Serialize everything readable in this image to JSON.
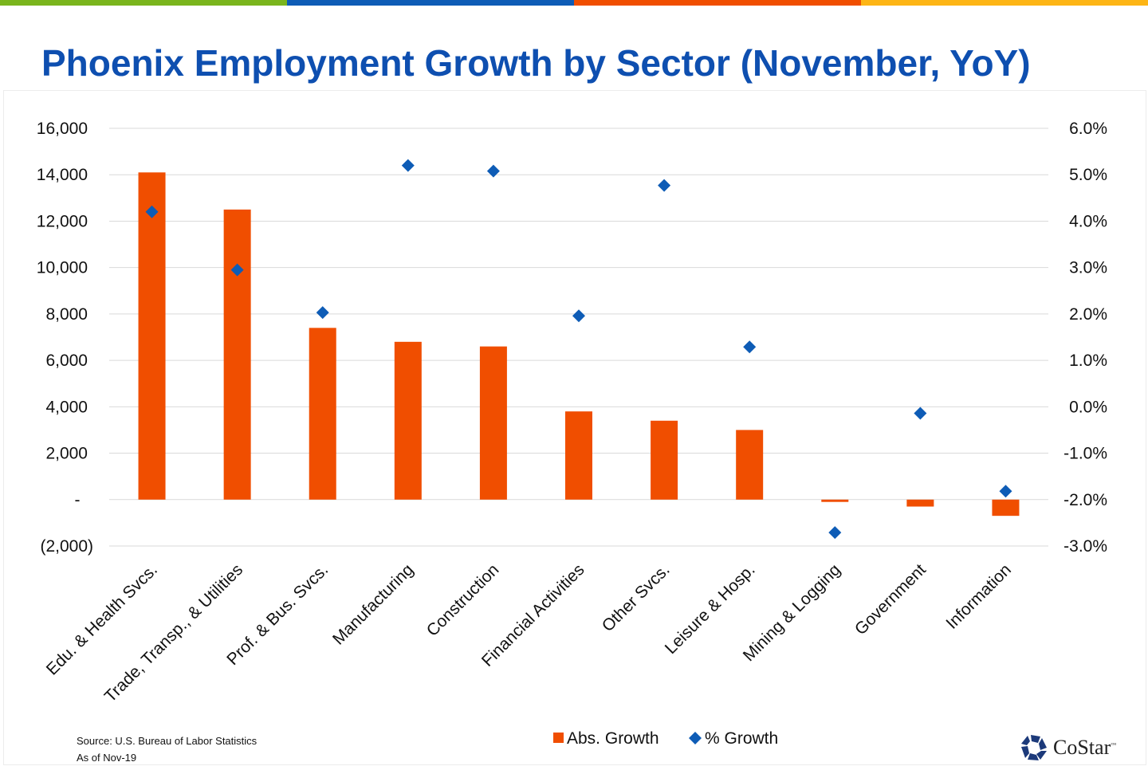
{
  "colors": {
    "bar": "#f04e00",
    "marker": "#0e5cb6",
    "title": "#0e4fb0",
    "stripes": [
      "#7ab51d",
      "#0e5cb6",
      "#f04e00",
      "#fdb515"
    ]
  },
  "chart_data": {
    "type": "bar+scatter",
    "title": "Phoenix Employment Growth by Sector (November, YoY)",
    "categories": [
      "Edu. & Health Svcs.",
      "Trade, Transp., & Utilities",
      "Prof. & Bus. Svcs.",
      "Manufacturing",
      "Construction",
      "Financial Activities",
      "Other Svcs.",
      "Leisure & Hosp.",
      "Mining & Logging",
      "Government",
      "Information"
    ],
    "series": [
      {
        "name": "Abs. Growth",
        "type": "bar",
        "axis": "left",
        "values": [
          14100,
          12500,
          7400,
          6800,
          6600,
          3800,
          3400,
          3000,
          -100,
          -300,
          -700
        ]
      },
      {
        "name": "% Growth",
        "type": "scatter",
        "marker": "diamond",
        "axis": "right",
        "values": [
          4.2,
          2.95,
          2.03,
          5.2,
          5.08,
          1.96,
          4.77,
          1.29,
          -2.71,
          -0.14,
          -1.82
        ]
      }
    ],
    "y_left": {
      "range": [
        -2000,
        16000
      ],
      "ticks": [
        16000,
        14000,
        12000,
        10000,
        8000,
        6000,
        4000,
        2000,
        0,
        -2000
      ],
      "tick_labels": [
        "16,000",
        "14,000",
        "12,000",
        "10,000",
        "8,000",
        "6,000",
        "4,000",
        "2,000",
        "-",
        "(2,000)"
      ]
    },
    "y_right": {
      "range": [
        -3,
        6
      ],
      "ticks": [
        6,
        5,
        4,
        3,
        2,
        1,
        0,
        -1,
        -2,
        -3
      ],
      "tick_labels": [
        "6.0%",
        "5.0%",
        "4.0%",
        "3.0%",
        "2.0%",
        "1.0%",
        "0.0%",
        "-1.0%",
        "-2.0%",
        "-3.0%"
      ]
    },
    "grid": true,
    "legend": "bottom-center"
  },
  "footer": {
    "source": "Source: U.S. Bureau of Labor Statistics",
    "as_of": "As of Nov-19"
  },
  "logo": {
    "text": "CoStar",
    "tm": "™"
  }
}
